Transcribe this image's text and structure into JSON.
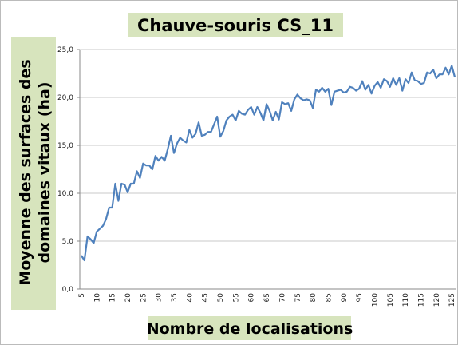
{
  "chart_data": {
    "type": "line",
    "title": "Chauve-souris CS_11",
    "ylabel": [
      "Moyenne des surfaces des",
      "domaines vitaux (ha)"
    ],
    "xlabel": "Nombre de localisations",
    "categories": [
      "5",
      null,
      null,
      null,
      null,
      "10",
      null,
      null,
      null,
      null,
      "15",
      null,
      null,
      null,
      null,
      "20",
      null,
      null,
      null,
      null,
      "25",
      null,
      null,
      null,
      null,
      "30",
      null,
      null,
      null,
      null,
      "35",
      null,
      null,
      null,
      null,
      "40",
      null,
      null,
      null,
      null,
      "45",
      null,
      null,
      null,
      null,
      "50",
      null,
      null,
      null,
      null,
      "55",
      null,
      null,
      null,
      null,
      "60",
      null,
      null,
      null,
      null,
      "65",
      null,
      null,
      null,
      null,
      "70",
      null,
      null,
      null,
      null,
      "75",
      null,
      null,
      null,
      null,
      "80",
      null,
      null,
      null,
      null,
      "85",
      null,
      null,
      null,
      null,
      "90",
      null,
      null,
      null,
      null,
      "95",
      null,
      null,
      null,
      null,
      "100",
      null,
      null,
      null,
      null,
      "105",
      null,
      null,
      null,
      null,
      "110",
      null,
      null,
      null,
      null,
      "115",
      null,
      null,
      null,
      null,
      "120",
      null,
      null,
      null,
      null,
      "125",
      null
    ],
    "series": [
      {
        "color": "#4f81bd",
        "values": [
          3.5,
          3.0,
          5.5,
          5.2,
          4.8,
          6.0,
          6.3,
          6.6,
          7.3,
          8.5,
          8.5,
          11.0,
          9.2,
          11.0,
          10.9,
          10.1,
          11.0,
          11.0,
          12.3,
          11.6,
          13.1,
          12.9,
          12.9,
          12.5,
          13.9,
          13.4,
          13.8,
          13.4,
          14.6,
          16.0,
          14.2,
          15.2,
          15.8,
          15.5,
          15.3,
          16.6,
          15.8,
          16.2,
          17.4,
          16.0,
          16.1,
          16.4,
          16.4,
          17.2,
          18.0,
          15.9,
          16.5,
          17.6,
          18.0,
          18.2,
          17.6,
          18.6,
          18.3,
          18.2,
          18.7,
          19.0,
          18.2,
          19.0,
          18.4,
          17.6,
          19.3,
          18.6,
          17.6,
          18.5,
          17.7,
          19.5,
          19.3,
          19.4,
          18.6,
          19.8,
          20.3,
          19.9,
          19.7,
          19.8,
          19.7,
          18.9,
          20.8,
          20.6,
          21.0,
          20.6,
          20.9,
          19.2,
          20.6,
          20.7,
          20.8,
          20.5,
          20.6,
          21.1,
          21.0,
          20.7,
          20.9,
          21.7,
          20.8,
          21.3,
          20.4,
          21.2,
          21.6,
          21.0,
          21.9,
          21.7,
          21.1,
          22.0,
          21.3,
          22.0,
          20.7,
          21.9,
          21.5,
          22.6,
          21.8,
          21.7,
          21.4,
          21.5,
          22.6,
          22.5,
          22.9,
          22.0,
          22.4,
          22.4,
          23.1,
          22.4,
          23.3,
          22.1
        ]
      }
    ],
    "ylim": [
      0,
      25
    ],
    "yticks": [
      {
        "value": 0,
        "label": "0,0"
      },
      {
        "value": 5,
        "label": "5,0"
      },
      {
        "value": 10,
        "label": "10,0"
      },
      {
        "value": 15,
        "label": "15,0"
      },
      {
        "value": 20,
        "label": "20,0"
      },
      {
        "value": 25,
        "label": "25,0"
      }
    ],
    "grid": true
  }
}
